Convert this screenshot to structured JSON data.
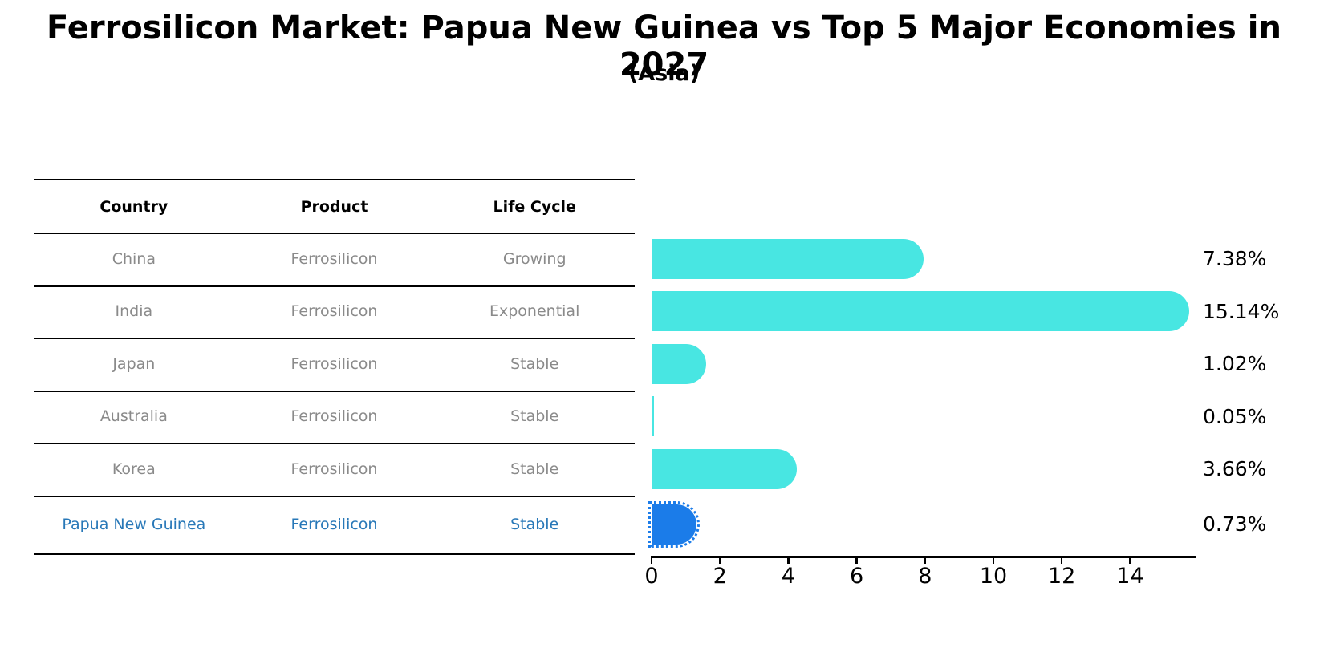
{
  "title": "Ferrosilicon Market: Papua New Guinea vs Top 5 Major Economies in 2027",
  "subtitle": "(Asia)",
  "table": {
    "headers": [
      "Country",
      "Product",
      "Life Cycle"
    ],
    "rows": [
      {
        "country": "China",
        "product": "Ferrosilicon",
        "life_cycle": "Growing",
        "highlight": false
      },
      {
        "country": "India",
        "product": "Ferrosilicon",
        "life_cycle": "Exponential",
        "highlight": false
      },
      {
        "country": "Japan",
        "product": "Ferrosilicon",
        "life_cycle": "Stable",
        "highlight": false
      },
      {
        "country": "Australia",
        "product": "Ferrosilicon",
        "life_cycle": "Stable",
        "highlight": false
      },
      {
        "country": "Korea",
        "product": "Ferrosilicon",
        "life_cycle": "Stable",
        "highlight": false
      },
      {
        "country": "Papua New Guinea",
        "product": "Ferrosilicon",
        "life_cycle": "Stable",
        "highlight": true
      }
    ]
  },
  "chart_data": {
    "type": "bar",
    "orientation": "horizontal",
    "title": "Ferrosilicon Market: Papua New Guinea vs Top 5 Major Economies in 2027",
    "subtitle": "(Asia)",
    "categories": [
      "China",
      "India",
      "Japan",
      "Australia",
      "Korea",
      "Papua New Guinea"
    ],
    "values": [
      7.38,
      15.14,
      1.02,
      0.05,
      3.66,
      0.73
    ],
    "labels": [
      "7.38%",
      "15.14%",
      "1.02%",
      "0.05%",
      "3.66%",
      "0.73%"
    ],
    "x_ticks": [
      "0",
      "2",
      "4",
      "6",
      "8",
      "10",
      "12",
      "14"
    ],
    "x_tick_values": [
      0,
      2,
      4,
      6,
      8,
      10,
      12,
      14
    ],
    "xlim": [
      0,
      16
    ],
    "grid": false,
    "legend": false,
    "highlight_index": 5
  },
  "colors": {
    "bar": "#48e6e2",
    "highlight_bar": "#1b7ce9",
    "highlight_text": "#2878b8",
    "table_text": "#8a8a8a",
    "header_text": "#000000",
    "axis": "#000000"
  }
}
